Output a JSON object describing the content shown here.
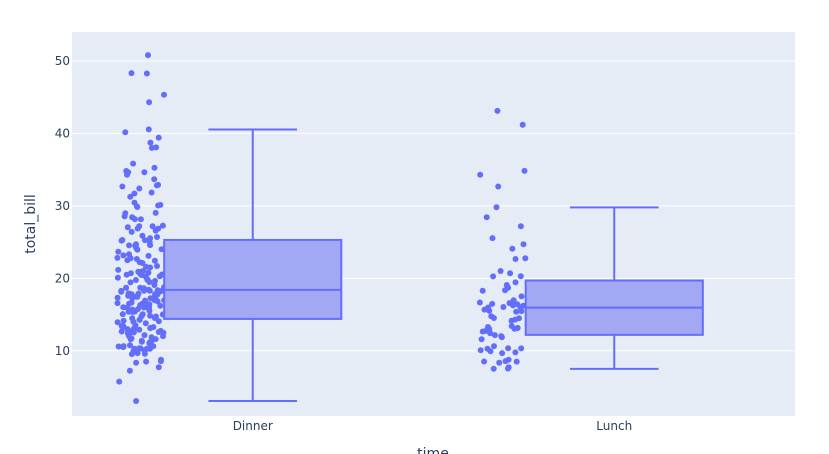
{
  "chart_data": {
    "type": "box",
    "title": "",
    "xlabel": "time",
    "ylabel": "total_bill",
    "categories": [
      "Dinner",
      "Lunch"
    ],
    "ylim": [
      1.0,
      54.0
    ],
    "yticks": [
      10,
      20,
      30,
      40,
      50
    ],
    "grid": true,
    "legend": "none",
    "colors": {
      "plot_bg": "#e5ecf6",
      "grid": "#ffffff",
      "marker": "#636efa",
      "box_fill": "#a2a8f3",
      "box_line": "#636efa",
      "text": "#2a3f5f"
    },
    "boxes": [
      {
        "category": "Dinner",
        "min": 3.07,
        "q1": 14.4,
        "median": 18.4,
        "q3": 25.3,
        "max": 40.55
      },
      {
        "category": "Lunch",
        "min": 7.51,
        "q1": 12.2,
        "median": 15.95,
        "q3": 19.7,
        "max": 29.8
      }
    ],
    "points": [
      {
        "category": "Dinner",
        "values": [
          50.81,
          48.33,
          48.27,
          45.35,
          44.3,
          40.55,
          40.17,
          39.42,
          38.73,
          38.07,
          38.01,
          35.83,
          35.26,
          34.81,
          34.65,
          34.63,
          34.3,
          33.68,
          32.9,
          32.83,
          32.68,
          32.4,
          31.85,
          31.71,
          31.27,
          30.46,
          30.14,
          30.06,
          29.93,
          29.85,
          29.03,
          28.97,
          28.55,
          28.44,
          28.17,
          28.15,
          27.28,
          27.2,
          27.18,
          27.05,
          26.88,
          26.86,
          26.59,
          26.41,
          25.89,
          25.71,
          25.56,
          25.29,
          25.28,
          25.21,
          25.0,
          24.71,
          24.59,
          24.55,
          24.52,
          24.27,
          24.06,
          24.01,
          23.95,
          23.68,
          23.33,
          23.17,
          23.1,
          22.82,
          22.76,
          22.75,
          22.67,
          22.49,
          22.42,
          22.23,
          22.12,
          21.7,
          21.58,
          21.5,
          21.16,
          21.01,
          20.92,
          20.9,
          20.76,
          20.69,
          20.65,
          20.53,
          20.49,
          20.45,
          20.29,
          20.23,
          20.08,
          19.82,
          19.81,
          19.77,
          19.65,
          19.49,
          19.44,
          19.08,
          18.78,
          18.71,
          18.69,
          18.64,
          18.43,
          18.35,
          18.29,
          18.28,
          18.26,
          18.24,
          18.15,
          17.92,
          17.89,
          17.82,
          17.81,
          17.78,
          17.59,
          17.51,
          17.47,
          17.46,
          17.31,
          17.29,
          17.26,
          17.07,
          16.99,
          16.97,
          16.93,
          16.82,
          16.66,
          16.58,
          16.49,
          16.47,
          16.45,
          16.4,
          16.31,
          16.29,
          16.27,
          16.21,
          16.04,
          16.0,
          15.98,
          15.95,
          15.81,
          15.77,
          15.69,
          15.53,
          15.48,
          15.42,
          15.38,
          15.36,
          15.06,
          15.04,
          15.01,
          14.83,
          14.78,
          14.73,
          14.52,
          14.48,
          14.31,
          14.26,
          14.15,
          14.07,
          14.0,
          13.94,
          13.81,
          13.51,
          13.42,
          13.39,
          13.37,
          13.28,
          13.27,
          13.16,
          13.13,
          13.03,
          13.0,
          12.9,
          12.74,
          12.69,
          12.66,
          12.6,
          12.54,
          12.48,
          12.43,
          12.26,
          12.16,
          12.03,
          12.02,
          11.87,
          11.69,
          11.61,
          11.59,
          11.38,
          11.35,
          11.24,
          11.17,
          11.02,
          10.77,
          10.65,
          10.63,
          10.59,
          10.51,
          10.34,
          10.33,
          10.29,
          10.27,
          10.26,
          10.07,
          9.94,
          9.78,
          9.68,
          9.6,
          9.55,
          8.77,
          8.58,
          8.51,
          8.35,
          7.74,
          7.25,
          5.75,
          3.07
        ]
      },
      {
        "category": "Lunch",
        "values": [
          43.11,
          41.19,
          34.83,
          34.3,
          32.68,
          29.8,
          28.44,
          27.2,
          25.56,
          24.71,
          24.08,
          22.76,
          22.67,
          21.01,
          20.69,
          20.29,
          20.27,
          19.44,
          19.08,
          18.71,
          18.35,
          18.29,
          17.51,
          16.97,
          16.66,
          16.58,
          16.47,
          16.43,
          16.27,
          16.21,
          16.04,
          16.0,
          15.98,
          15.69,
          15.53,
          15.48,
          15.38,
          14.78,
          14.52,
          14.48,
          14.31,
          14.15,
          13.42,
          13.28,
          13.16,
          13.13,
          13.03,
          13.0,
          12.74,
          12.66,
          12.43,
          12.16,
          12.03,
          11.87,
          11.59,
          10.65,
          10.34,
          10.33,
          10.29,
          10.07,
          9.94,
          9.78,
          9.68,
          8.77,
          8.58,
          8.52,
          8.51,
          8.35,
          7.74,
          7.56,
          7.51
        ]
      }
    ]
  }
}
